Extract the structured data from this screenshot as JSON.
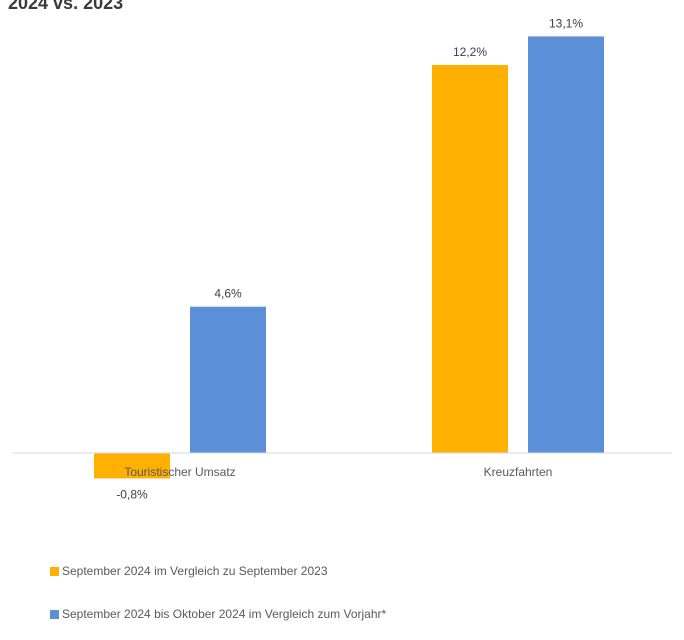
{
  "chart_data": {
    "type": "bar",
    "title": "2024 vs. 2023",
    "categories": [
      "Touristischer Umsatz",
      "Kreuzfahrten"
    ],
    "series": [
      {
        "name": "September 2024 im Vergleich zu September 2023",
        "color": "#FFB000",
        "values": [
          -0.8,
          12.2
        ],
        "labels": [
          "-0,8%",
          "12,2%"
        ]
      },
      {
        "name": "September 2024 bis Oktober 2024 im Vergleich zum Vorjahr*",
        "color": "#5B8FD8",
        "values": [
          4.6,
          13.1
        ],
        "labels": [
          "4,6%",
          "13,1%"
        ]
      }
    ],
    "ylim": [
      -1.5,
      14
    ],
    "grid": false,
    "legend_position": "bottom-left",
    "axis_color": "#D9D9D9"
  }
}
